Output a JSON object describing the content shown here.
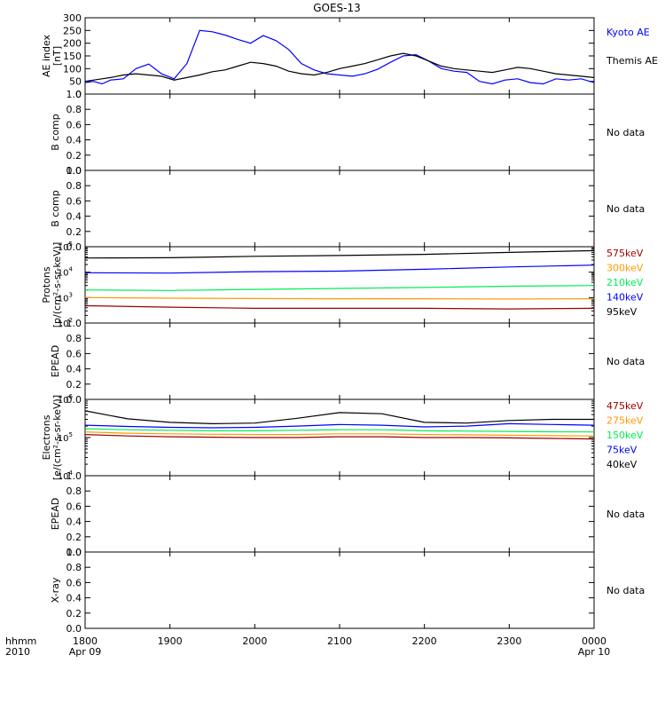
{
  "title": "GOES-13",
  "time_axis": {
    "row1": {
      "corner": "hhmm",
      "ticks": [
        "1800",
        "1900",
        "2000",
        "2100",
        "2200",
        "2300",
        "0000"
      ]
    },
    "row2": {
      "corner": "2010",
      "first": "Apr 09",
      "last": "Apr 10"
    }
  },
  "no_data_text": "No data",
  "chart_data": [
    {
      "type": "line",
      "ylabel": "AE index",
      "yunit": "[nT]",
      "ylim": [
        0,
        300
      ],
      "yticks": [
        0,
        50,
        100,
        150,
        200,
        250,
        300
      ],
      "x_hours": [
        0,
        0.1,
        0.2,
        0.3,
        0.45,
        0.6,
        0.75,
        0.9,
        1.05,
        1.2,
        1.35,
        1.5,
        1.65,
        1.8,
        1.95,
        2.1,
        2.25,
        2.4,
        2.55,
        2.7,
        2.85,
        3.0,
        3.15,
        3.3,
        3.45,
        3.6,
        3.75,
        3.9,
        4.05,
        4.2,
        4.35,
        4.5,
        4.65,
        4.8,
        4.95,
        5.1,
        5.25,
        5.4,
        5.55,
        5.7,
        5.85,
        6.0
      ],
      "series": [
        {
          "name": "Kyoto AE",
          "color": "#0000ff",
          "values": [
            45,
            50,
            40,
            55,
            60,
            100,
            118,
            80,
            60,
            120,
            250,
            245,
            232,
            215,
            200,
            230,
            210,
            175,
            120,
            95,
            80,
            75,
            70,
            80,
            98,
            125,
            150,
            155,
            130,
            100,
            90,
            85,
            50,
            40,
            55,
            60,
            45,
            40,
            60,
            55,
            60,
            45
          ]
        },
        {
          "name": "Themis AE",
          "color": "#000000",
          "values": [
            50,
            55,
            60,
            65,
            75,
            80,
            75,
            70,
            55,
            65,
            75,
            88,
            95,
            110,
            125,
            120,
            110,
            90,
            80,
            75,
            85,
            100,
            110,
            120,
            135,
            150,
            160,
            150,
            130,
            110,
            100,
            95,
            90,
            85,
            95,
            105,
            100,
            90,
            80,
            75,
            70,
            65
          ]
        }
      ]
    },
    {
      "type": "line",
      "ylabel": "B comp",
      "ylim": [
        0,
        1
      ],
      "yticks": [
        "0.0",
        "0.2",
        "0.4",
        "0.6",
        "0.8",
        "1.0"
      ],
      "no_data": true,
      "series": []
    },
    {
      "type": "line",
      "ylabel": "B comp",
      "ylim": [
        0,
        1
      ],
      "yticks": [
        "0.0",
        "0.2",
        "0.4",
        "0.6",
        "0.8",
        "1.0"
      ],
      "no_data": true,
      "series": []
    },
    {
      "type": "line",
      "log": true,
      "ylabel": "Protons",
      "yunit": "[p/(cm²-s-sr-keV)]",
      "ylim_exp": [
        2,
        5
      ],
      "ytick_exps": [
        2,
        3,
        4,
        5
      ],
      "x_hours": [
        0,
        1,
        2,
        3,
        4,
        5,
        6
      ],
      "series": [
        {
          "name": "575keV",
          "color": "#990000",
          "values": [
            480,
            420,
            380,
            380,
            380,
            360,
            380
          ]
        },
        {
          "name": "300keV",
          "color": "#ff9900",
          "values": [
            1000,
            950,
            920,
            900,
            900,
            880,
            900
          ]
        },
        {
          "name": "210keV",
          "color": "#00ee55",
          "values": [
            2000,
            1900,
            2100,
            2300,
            2500,
            2800,
            3000
          ]
        },
        {
          "name": "140keV",
          "color": "#0000ff",
          "values": [
            9500,
            9200,
            10500,
            11000,
            13000,
            16000,
            19000
          ]
        },
        {
          "name": "95keV",
          "color": "#000000",
          "values": [
            36000,
            37000,
            42000,
            45000,
            50000,
            60000,
            70000
          ]
        }
      ]
    },
    {
      "type": "line",
      "ylabel": "EPEAD",
      "ylim": [
        0,
        1
      ],
      "yticks": [
        "0.0",
        "0.2",
        "0.4",
        "0.6",
        "0.8",
        "1.0"
      ],
      "no_data": true,
      "series": []
    },
    {
      "type": "line",
      "log": true,
      "ylabel": "Electrons",
      "yunit": "[e/(cm²-s-sr-keV)]",
      "ylim_exp": [
        4,
        6
      ],
      "ytick_exps": [
        4,
        5,
        6
      ],
      "x_hours": [
        0,
        0.5,
        1,
        1.5,
        2,
        2.5,
        3,
        3.5,
        4,
        4.5,
        5,
        5.5,
        6
      ],
      "series": [
        {
          "name": "475keV",
          "color": "#990000",
          "values": [
            120000,
            110000,
            105000,
            102000,
            100000,
            100000,
            105000,
            105000,
            100000,
            100000,
            98000,
            95000,
            92000
          ]
        },
        {
          "name": "275keV",
          "color": "#ff9900",
          "values": [
            140000,
            130000,
            125000,
            122000,
            120000,
            120000,
            125000,
            125000,
            120000,
            118000,
            115000,
            112000,
            110000
          ]
        },
        {
          "name": "150keV",
          "color": "#00ee55",
          "values": [
            170000,
            160000,
            155000,
            150000,
            150000,
            155000,
            160000,
            160000,
            150000,
            148000,
            145000,
            142000,
            140000
          ]
        },
        {
          "name": "75keV",
          "color": "#0000ff",
          "values": [
            210000,
            195000,
            185000,
            180000,
            185000,
            200000,
            220000,
            210000,
            190000,
            200000,
            230000,
            220000,
            210000
          ]
        },
        {
          "name": "40keV",
          "color": "#000000",
          "values": [
            500000,
            310000,
            250000,
            230000,
            240000,
            320000,
            450000,
            420000,
            250000,
            240000,
            280000,
            300000,
            300000
          ]
        }
      ]
    },
    {
      "type": "line",
      "ylabel": "EPEAD",
      "ylim": [
        0,
        1
      ],
      "yticks": [
        "0.0",
        "0.2",
        "0.4",
        "0.6",
        "0.8",
        "1.0"
      ],
      "no_data": true,
      "series": []
    },
    {
      "type": "line",
      "ylabel": "X-ray",
      "ylim": [
        0,
        1
      ],
      "yticks": [
        "0.0",
        "0.2",
        "0.4",
        "0.6",
        "0.8",
        "1.0"
      ],
      "no_data": true,
      "series": []
    }
  ]
}
